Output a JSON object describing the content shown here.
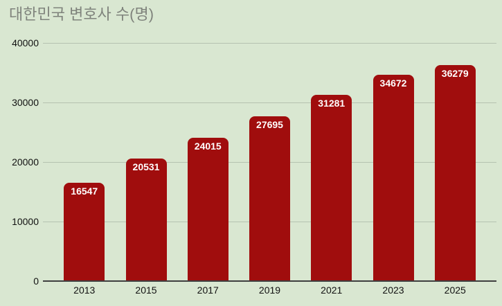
{
  "title": "대한민국 변호사 수(명)",
  "colors": {
    "background": "#d9e7d1",
    "bar": "#a00d0d",
    "title_text": "#7f837c",
    "axis_text": "#111111",
    "gridline": "#b5c2b0",
    "baseline": "#3e3e3e",
    "bar_label_text": "#ffffff"
  },
  "chart_data": {
    "type": "bar",
    "title": "대한민국 변호사 수(명)",
    "categories": [
      "2013",
      "2015",
      "2017",
      "2019",
      "2021",
      "2023",
      "2025"
    ],
    "values": [
      16547,
      20531,
      24015,
      27695,
      31281,
      34672,
      36279
    ],
    "bar_labels": [
      "16547",
      "20531",
      "24015",
      "27695",
      "31281",
      "34672",
      "36279"
    ],
    "xlabel": "",
    "ylabel": "",
    "ylim": [
      0,
      40000
    ],
    "yticks": [
      0,
      10000,
      20000,
      30000,
      40000
    ],
    "grid": true,
    "legend_position": "none",
    "data_labels_visible": true
  }
}
